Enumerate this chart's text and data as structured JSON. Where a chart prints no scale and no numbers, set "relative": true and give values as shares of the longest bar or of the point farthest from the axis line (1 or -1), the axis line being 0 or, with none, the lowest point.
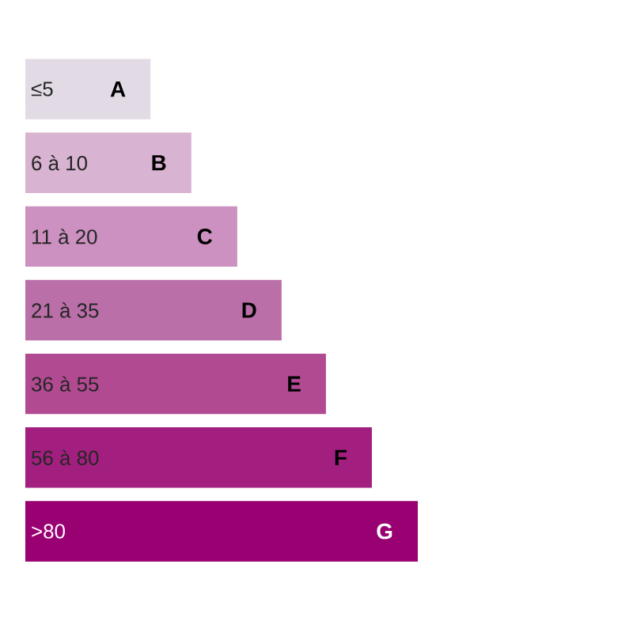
{
  "chart_data": {
    "type": "bar",
    "orientation": "horizontal",
    "relative": true,
    "categories": [
      "≤5",
      "6 à 10",
      "11 à 20",
      "21 à 35",
      "36 à 55",
      "56 à 80",
      ">80"
    ],
    "values": [
      0.319,
      0.423,
      0.54,
      0.653,
      0.766,
      0.883,
      1
    ],
    "colors": [
      "#e2dbe6",
      "#d9b3d2",
      "#cc90c1",
      "#bb6fa8",
      "#b24a92",
      "#a31f7f",
      "#990071"
    ],
    "annotations": [
      "A",
      "B",
      "C",
      "D",
      "E",
      "F",
      "G"
    ]
  }
}
